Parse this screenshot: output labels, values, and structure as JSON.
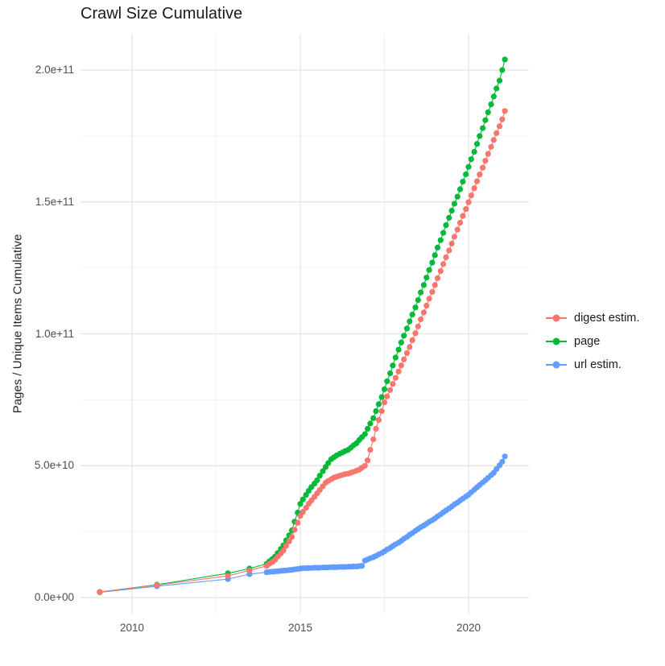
{
  "figure": {
    "title": "Crawl Size Cumulative",
    "y_axis_title": "Pages / Unique Items Cumulative"
  },
  "legend": {
    "items": [
      {
        "label": "digest estim.",
        "color": "#F8766D"
      },
      {
        "label": "page",
        "color": "#00BA38"
      },
      {
        "label": "url estim.",
        "color": "#619CFF"
      }
    ]
  },
  "chart_data": {
    "type": "line",
    "title": "Crawl Size Cumulative",
    "xlabel": "",
    "ylabel": "Pages / Unique Items Cumulative",
    "legend_position": "right",
    "grid": true,
    "unit": "point format [year, value in billions (1e9)]",
    "xlim": [
      2008.47,
      2021.79
    ],
    "ylim_e9": [
      -6,
      214
    ],
    "x_ticks": [
      {
        "label": "2010",
        "value": 2010
      },
      {
        "label": "2015",
        "value": 2015
      },
      {
        "label": "2020",
        "value": 2020
      }
    ],
    "x_minor_ticks": [
      2012.5,
      2017.5
    ],
    "y_ticks": [
      {
        "label": "0.0e+00",
        "value_e9": 0
      },
      {
        "label": "5.0e+10",
        "value_e9": 50
      },
      {
        "label": "1.0e+11",
        "value_e9": 100
      },
      {
        "label": "1.5e+11",
        "value_e9": 150
      },
      {
        "label": "2.0e+11",
        "value_e9": 200
      }
    ],
    "y_minor_ticks_e9": [
      25,
      75,
      125,
      175
    ],
    "draw_order": [
      "url estim.",
      "page",
      "digest estim."
    ],
    "series": [
      {
        "name": "digest estim.",
        "color": "#F8766D",
        "points": [
          [
            2009.04,
            2.1
          ],
          [
            2010.74,
            4.7
          ],
          [
            2012.85,
            8.2
          ],
          [
            2013.49,
            10.3
          ],
          [
            2014,
            12
          ],
          [
            2014.08,
            12.8
          ],
          [
            2014.17,
            13.5
          ],
          [
            2014.25,
            14.3
          ],
          [
            2014.33,
            15.5
          ],
          [
            2014.42,
            16.7
          ],
          [
            2014.5,
            17.9
          ],
          [
            2014.58,
            19.6
          ],
          [
            2014.67,
            21.3
          ],
          [
            2014.75,
            23
          ],
          [
            2014.83,
            25.7
          ],
          [
            2014.92,
            28.3
          ],
          [
            2015,
            31
          ],
          [
            2015.08,
            32.5
          ],
          [
            2015.17,
            34
          ],
          [
            2015.25,
            35.5
          ],
          [
            2015.33,
            36.8
          ],
          [
            2015.42,
            38.2
          ],
          [
            2015.5,
            39.5
          ],
          [
            2015.58,
            40.8
          ],
          [
            2015.67,
            42.2
          ],
          [
            2015.75,
            43.5
          ],
          [
            2015.83,
            44.2
          ],
          [
            2015.92,
            44.9
          ],
          [
            2016,
            45.5
          ],
          [
            2016.08,
            45.8
          ],
          [
            2016.17,
            46.2
          ],
          [
            2016.25,
            46.5
          ],
          [
            2016.33,
            46.8
          ],
          [
            2016.42,
            47
          ],
          [
            2016.5,
            47.3
          ],
          [
            2016.58,
            47.7
          ],
          [
            2016.67,
            48.1
          ],
          [
            2016.75,
            48.5
          ],
          [
            2016.83,
            49.2
          ],
          [
            2016.92,
            50
          ],
          [
            2017,
            52
          ],
          [
            2017.08,
            56
          ],
          [
            2017.17,
            60
          ],
          [
            2017.25,
            64
          ],
          [
            2017.33,
            67.3
          ],
          [
            2017.42,
            70.7
          ],
          [
            2017.5,
            74
          ],
          [
            2017.58,
            76.3
          ],
          [
            2017.67,
            78.7
          ],
          [
            2017.75,
            81
          ],
          [
            2017.83,
            83.3
          ],
          [
            2017.92,
            85.7
          ],
          [
            2018,
            88
          ],
          [
            2018.08,
            90.3
          ],
          [
            2018.17,
            92.7
          ],
          [
            2018.25,
            95
          ],
          [
            2018.33,
            97.6
          ],
          [
            2018.42,
            100.2
          ],
          [
            2018.5,
            102.8
          ],
          [
            2018.58,
            105.5
          ],
          [
            2018.67,
            108.1
          ],
          [
            2018.75,
            110.7
          ],
          [
            2018.83,
            113.3
          ],
          [
            2018.92,
            115.9
          ],
          [
            2019,
            118.5
          ],
          [
            2019.08,
            121.1
          ],
          [
            2019.17,
            123.8
          ],
          [
            2019.25,
            126.4
          ],
          [
            2019.33,
            129
          ],
          [
            2019.42,
            131.6
          ],
          [
            2019.5,
            134.2
          ],
          [
            2019.58,
            136.8
          ],
          [
            2019.67,
            139.5
          ],
          [
            2019.75,
            142.1
          ],
          [
            2019.83,
            144.7
          ],
          [
            2019.92,
            147.3
          ],
          [
            2020,
            149.9
          ],
          [
            2020.08,
            152.5
          ],
          [
            2020.17,
            155.2
          ],
          [
            2020.25,
            157.8
          ],
          [
            2020.33,
            160.4
          ],
          [
            2020.42,
            163
          ],
          [
            2020.5,
            165.6
          ],
          [
            2020.58,
            168.2
          ],
          [
            2020.67,
            170.9
          ],
          [
            2020.75,
            173.5
          ],
          [
            2020.83,
            176.1
          ],
          [
            2020.92,
            178.7
          ],
          [
            2021,
            181.3
          ],
          [
            2021.08,
            184.5
          ]
        ]
      },
      {
        "name": "page",
        "color": "#00BA38",
        "points": [
          [
            2009.04,
            2.1
          ],
          [
            2010.74,
            4.9
          ],
          [
            2012.85,
            9.2
          ],
          [
            2013.49,
            11
          ],
          [
            2014,
            12.8
          ],
          [
            2014.08,
            13.7
          ],
          [
            2014.17,
            14.6
          ],
          [
            2014.25,
            15.5
          ],
          [
            2014.33,
            16.9
          ],
          [
            2014.42,
            18.4
          ],
          [
            2014.5,
            19.8
          ],
          [
            2014.58,
            21.7
          ],
          [
            2014.67,
            23.6
          ],
          [
            2014.75,
            25.5
          ],
          [
            2014.83,
            28.8
          ],
          [
            2014.92,
            32.2
          ],
          [
            2015,
            35.5
          ],
          [
            2015.08,
            37.2
          ],
          [
            2015.17,
            38.9
          ],
          [
            2015.25,
            40.5
          ],
          [
            2015.33,
            41.9
          ],
          [
            2015.42,
            43.2
          ],
          [
            2015.5,
            44.5
          ],
          [
            2015.58,
            46.2
          ],
          [
            2015.67,
            47.9
          ],
          [
            2015.75,
            49.5
          ],
          [
            2015.83,
            51
          ],
          [
            2015.92,
            52.5
          ],
          [
            2016,
            53.2
          ],
          [
            2016.08,
            53.9
          ],
          [
            2016.17,
            54.5
          ],
          [
            2016.25,
            55
          ],
          [
            2016.33,
            55.5
          ],
          [
            2016.42,
            56
          ],
          [
            2016.5,
            56.8
          ],
          [
            2016.58,
            57.7
          ],
          [
            2016.67,
            58.5
          ],
          [
            2016.75,
            59.7
          ],
          [
            2016.83,
            60.8
          ],
          [
            2016.92,
            62
          ],
          [
            2017,
            64
          ],
          [
            2017.08,
            66
          ],
          [
            2017.17,
            68
          ],
          [
            2017.25,
            70.7
          ],
          [
            2017.33,
            73.3
          ],
          [
            2017.42,
            76
          ],
          [
            2017.5,
            79
          ],
          [
            2017.58,
            82
          ],
          [
            2017.67,
            85
          ],
          [
            2017.75,
            88
          ],
          [
            2017.83,
            91
          ],
          [
            2017.92,
            94
          ],
          [
            2018,
            96.7
          ],
          [
            2018.08,
            99.3
          ],
          [
            2018.17,
            102
          ],
          [
            2018.25,
            104.7
          ],
          [
            2018.33,
            107.3
          ],
          [
            2018.42,
            110
          ],
          [
            2018.5,
            112.8
          ],
          [
            2018.58,
            115.7
          ],
          [
            2018.67,
            118.5
          ],
          [
            2018.75,
            121.3
          ],
          [
            2018.83,
            124.2
          ],
          [
            2018.92,
            127
          ],
          [
            2019,
            129.8
          ],
          [
            2019.08,
            132.7
          ],
          [
            2019.17,
            135.5
          ],
          [
            2019.25,
            138.3
          ],
          [
            2019.33,
            141.2
          ],
          [
            2019.42,
            144
          ],
          [
            2019.5,
            146.7
          ],
          [
            2019.58,
            149.3
          ],
          [
            2019.67,
            152
          ],
          [
            2019.75,
            154.8
          ],
          [
            2019.83,
            157.7
          ],
          [
            2019.92,
            160.5
          ],
          [
            2020,
            163.3
          ],
          [
            2020.08,
            166.2
          ],
          [
            2020.17,
            169
          ],
          [
            2020.25,
            172
          ],
          [
            2020.33,
            175
          ],
          [
            2020.42,
            178
          ],
          [
            2020.5,
            181
          ],
          [
            2020.58,
            184
          ],
          [
            2020.67,
            187
          ],
          [
            2020.75,
            190
          ],
          [
            2020.83,
            193
          ],
          [
            2020.92,
            196
          ],
          [
            2021,
            200
          ],
          [
            2021.08,
            204
          ]
        ]
      },
      {
        "name": "url estim.",
        "color": "#619CFF",
        "points": [
          [
            2009.04,
            2
          ],
          [
            2010.74,
            4.3
          ],
          [
            2012.85,
            7
          ],
          [
            2013.49,
            8.9
          ],
          [
            2014,
            9.6
          ],
          [
            2014.08,
            9.7
          ],
          [
            2014.17,
            9.8
          ],
          [
            2014.25,
            9.9
          ],
          [
            2014.33,
            10
          ],
          [
            2014.42,
            10.1
          ],
          [
            2014.5,
            10.2
          ],
          [
            2014.58,
            10.3
          ],
          [
            2014.67,
            10.4
          ],
          [
            2014.75,
            10.5
          ],
          [
            2014.83,
            10.7
          ],
          [
            2014.92,
            10.8
          ],
          [
            2015,
            11
          ],
          [
            2015.08,
            11.1
          ],
          [
            2015.17,
            11.1
          ],
          [
            2015.25,
            11.2
          ],
          [
            2015.33,
            11.2
          ],
          [
            2015.42,
            11.3
          ],
          [
            2015.5,
            11.3
          ],
          [
            2015.58,
            11.3
          ],
          [
            2015.67,
            11.4
          ],
          [
            2015.75,
            11.4
          ],
          [
            2015.83,
            11.4
          ],
          [
            2015.92,
            11.5
          ],
          [
            2016,
            11.5
          ],
          [
            2016.08,
            11.5
          ],
          [
            2016.17,
            11.6
          ],
          [
            2016.25,
            11.6
          ],
          [
            2016.33,
            11.6
          ],
          [
            2016.42,
            11.7
          ],
          [
            2016.5,
            11.7
          ],
          [
            2016.58,
            11.8
          ],
          [
            2016.67,
            11.8
          ],
          [
            2016.75,
            11.9
          ],
          [
            2016.83,
            12
          ],
          [
            2016.92,
            14
          ],
          [
            2017,
            14.4
          ],
          [
            2017.08,
            14.9
          ],
          [
            2017.17,
            15.3
          ],
          [
            2017.25,
            15.8
          ],
          [
            2017.33,
            16.4
          ],
          [
            2017.42,
            16.9
          ],
          [
            2017.5,
            17.5
          ],
          [
            2017.58,
            18.2
          ],
          [
            2017.67,
            18.8
          ],
          [
            2017.75,
            19.5
          ],
          [
            2017.83,
            20.2
          ],
          [
            2017.92,
            20.8
          ],
          [
            2018,
            21.5
          ],
          [
            2018.08,
            22.3
          ],
          [
            2018.17,
            23
          ],
          [
            2018.25,
            23.8
          ],
          [
            2018.33,
            24.5
          ],
          [
            2018.42,
            25.3
          ],
          [
            2018.5,
            26
          ],
          [
            2018.58,
            26.7
          ],
          [
            2018.67,
            27.3
          ],
          [
            2018.75,
            28
          ],
          [
            2018.83,
            28.7
          ],
          [
            2018.92,
            29.3
          ],
          [
            2019,
            30
          ],
          [
            2019.08,
            30.8
          ],
          [
            2019.17,
            31.5
          ],
          [
            2019.25,
            32.3
          ],
          [
            2019.33,
            33
          ],
          [
            2019.42,
            33.8
          ],
          [
            2019.5,
            34.5
          ],
          [
            2019.58,
            35.3
          ],
          [
            2019.67,
            36
          ],
          [
            2019.75,
            36.8
          ],
          [
            2019.83,
            37.5
          ],
          [
            2019.92,
            38.3
          ],
          [
            2020,
            39
          ],
          [
            2020.08,
            39.9
          ],
          [
            2020.17,
            40.9
          ],
          [
            2020.25,
            41.8
          ],
          [
            2020.33,
            42.7
          ],
          [
            2020.42,
            43.6
          ],
          [
            2020.5,
            44.5
          ],
          [
            2020.58,
            45.4
          ],
          [
            2020.67,
            46.4
          ],
          [
            2020.75,
            47.3
          ],
          [
            2020.83,
            48.7
          ],
          [
            2020.92,
            50.1
          ],
          [
            2021,
            51.5
          ],
          [
            2021.08,
            53.5
          ]
        ]
      }
    ]
  }
}
